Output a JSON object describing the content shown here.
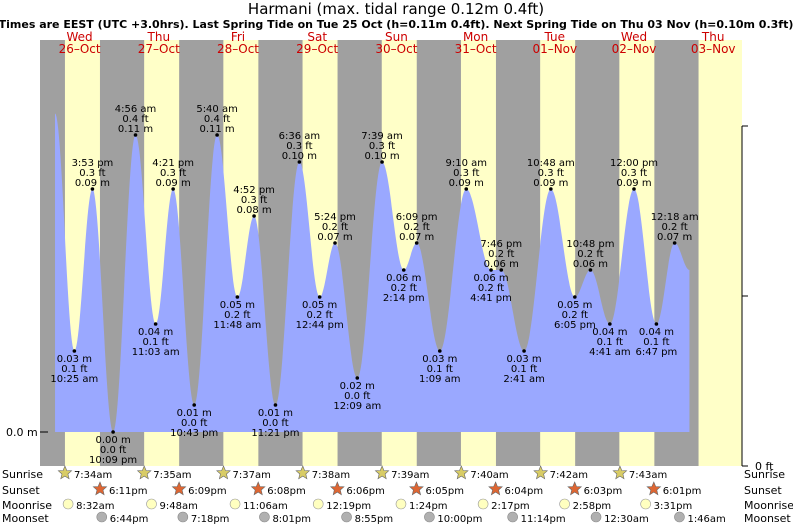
{
  "title": "Harmani (max. tidal range 0.12m 0.4ft)",
  "subtitle": "Times are EEST (UTC +3.0hrs). Last Spring Tide on Tue 25 Oct (h=0.11m 0.4ft). Next Spring Tide on Thu 03 Nov (h=0.10m 0.3ft)",
  "colors": {
    "night": "#a0a0a0",
    "day": "#ffffc8",
    "tide": "#9aa8ff",
    "day_label": "#cc0000",
    "sunrise_star": "#d8cc66",
    "sunset_star": "#dd6633",
    "moonrise": "#ffffc0",
    "moonset": "#b0b0b0"
  },
  "days": [
    {
      "name": "Wed",
      "date": "26–Oct"
    },
    {
      "name": "Thu",
      "date": "27–Oct"
    },
    {
      "name": "Fri",
      "date": "28–Oct"
    },
    {
      "name": "Sat",
      "date": "29–Oct"
    },
    {
      "name": "Sun",
      "date": "30–Oct"
    },
    {
      "name": "Mon",
      "date": "31–Oct"
    },
    {
      "name": "Tue",
      "date": "01–Nov"
    },
    {
      "name": "Wed",
      "date": "02–Nov"
    },
    {
      "name": "Thu",
      "date": "03–Nov"
    }
  ],
  "axis": {
    "left_label": "0.0 m",
    "right_label": "0 ft"
  },
  "rows": {
    "labels": [
      "Sunrise",
      "Sunset",
      "Moonrise",
      "Moonset"
    ],
    "sunrise": [
      "7:34am",
      "7:35am",
      "7:37am",
      "7:38am",
      "7:39am",
      "7:40am",
      "7:42am",
      "7:43am"
    ],
    "sunset": [
      "6:11pm",
      "6:09pm",
      "6:08pm",
      "6:06pm",
      "6:05pm",
      "6:04pm",
      "6:03pm",
      "6:01pm"
    ],
    "moonrise": [
      "8:32am",
      "9:48am",
      "11:06am",
      "12:19pm",
      "1:24pm",
      "2:17pm",
      "2:58pm",
      "3:31pm"
    ],
    "moonset": [
      "6:44pm",
      "7:18pm",
      "8:01pm",
      "8:55pm",
      "10:00pm",
      "11:14pm",
      "12:30am",
      "1:46am"
    ]
  },
  "chart_data": {
    "type": "area",
    "title": "Harmani (max. tidal range 0.12m 0.4ft)",
    "ylabel_left": "m",
    "ylabel_right": "ft",
    "ylim_m": [
      0,
      0.12
    ],
    "x_range_days": [
      "Wed 26-Oct",
      "Thu 03-Nov"
    ],
    "series": [
      {
        "name": "tide height",
        "points": [
          {
            "time": "10:25 am",
            "m": "0.03 m",
            "ft": "0.1 ft",
            "h": 0.03,
            "t": 0.434
          },
          {
            "time": "3:53 pm",
            "m": "0.09 m",
            "ft": "0.3 ft",
            "h": 0.09,
            "t": 0.662
          },
          {
            "time": "10:09 pm",
            "m": "0.00 m",
            "ft": "0.0 ft",
            "h": 0.0,
            "t": 0.923
          },
          {
            "time": "4:56 am",
            "m": "0.11 m",
            "ft": "0.4 ft",
            "h": 0.11,
            "t": 1.206
          },
          {
            "time": "11:03 am",
            "m": "0.04 m",
            "ft": "0.1 ft",
            "h": 0.04,
            "t": 1.46
          },
          {
            "time": "4:21 pm",
            "m": "0.09 m",
            "ft": "0.3 ft",
            "h": 0.09,
            "t": 1.681
          },
          {
            "time": "10:43 pm",
            "m": "0.01 m",
            "ft": "0.0 ft",
            "h": 0.01,
            "t": 1.947
          },
          {
            "time": "5:40 am",
            "m": "0.11 m",
            "ft": "0.4 ft",
            "h": 0.11,
            "t": 2.236
          },
          {
            "time": "11:48 am",
            "m": "0.05 m",
            "ft": "0.2 ft",
            "h": 0.05,
            "t": 2.492
          },
          {
            "time": "4:52 pm",
            "m": "0.08 m",
            "ft": "0.3 ft",
            "h": 0.08,
            "t": 2.703
          },
          {
            "time": "11:21 pm",
            "m": "0.01 m",
            "ft": "0.0 ft",
            "h": 0.01,
            "t": 2.973
          },
          {
            "time": "6:36 am",
            "m": "0.10 m",
            "ft": "0.3 ft",
            "h": 0.1,
            "t": 3.275
          },
          {
            "time": "12:44 pm",
            "m": "0.05 m",
            "ft": "0.2 ft",
            "h": 0.05,
            "t": 3.531
          },
          {
            "time": "5:24 pm",
            "m": "0.07 m",
            "ft": "0.2 ft",
            "h": 0.07,
            "t": 3.725
          },
          {
            "time": "12:09 am",
            "m": "0.02 m",
            "ft": "0.0 ft",
            "h": 0.02,
            "t": 4.006
          },
          {
            "time": "7:39 am",
            "m": "0.10 m",
            "ft": "0.3 ft",
            "h": 0.1,
            "t": 4.319
          },
          {
            "time": "2:14 pm",
            "m": "0.06 m",
            "ft": "0.2 ft",
            "h": 0.06,
            "t": 4.593
          },
          {
            "time": "6:09 pm",
            "m": "0.07 m",
            "ft": "0.2 ft",
            "h": 0.07,
            "t": 4.756
          },
          {
            "time": "1:09 am",
            "m": "0.03 m",
            "ft": "0.1 ft",
            "h": 0.03,
            "t": 5.048
          },
          {
            "time": "9:10 am",
            "m": "0.09 m",
            "ft": "0.3 ft",
            "h": 0.09,
            "t": 5.382
          },
          {
            "time": "4:41 pm",
            "m": "0.06 m",
            "ft": "0.2 ft",
            "h": 0.06,
            "t": 5.695
          },
          {
            "time": "7:46 pm",
            "m": "0.06 m",
            "ft": "0.2 ft",
            "h": 0.06,
            "t": 5.824
          },
          {
            "time": "2:41 am",
            "m": "0.03 m",
            "ft": "0.1 ft",
            "h": 0.03,
            "t": 6.112
          },
          {
            "time": "10:48 am",
            "m": "0.09 m",
            "ft": "0.3 ft",
            "h": 0.09,
            "t": 6.45
          },
          {
            "time": "6:05 pm",
            "m": "0.05 m",
            "ft": "0.2 ft",
            "h": 0.05,
            "t": 6.753
          },
          {
            "time": "10:48 pm",
            "m": "0.06 m",
            "ft": "0.2 ft",
            "h": 0.06,
            "t": 6.95
          },
          {
            "time": "4:41 am",
            "m": "0.04 m",
            "ft": "0.1 ft",
            "h": 0.04,
            "t": 7.195
          },
          {
            "time": "12:00 pm",
            "m": "0.09 m",
            "ft": "0.3 ft",
            "h": 0.09,
            "t": 7.5
          },
          {
            "time": "6:47 pm",
            "m": "0.04 m",
            "ft": "0.1 ft",
            "h": 0.04,
            "t": 7.783
          },
          {
            "time": "12:18 am",
            "m": "0.07 m",
            "ft": "0.2 ft",
            "h": 0.07,
            "t": 8.013
          }
        ]
      }
    ]
  }
}
